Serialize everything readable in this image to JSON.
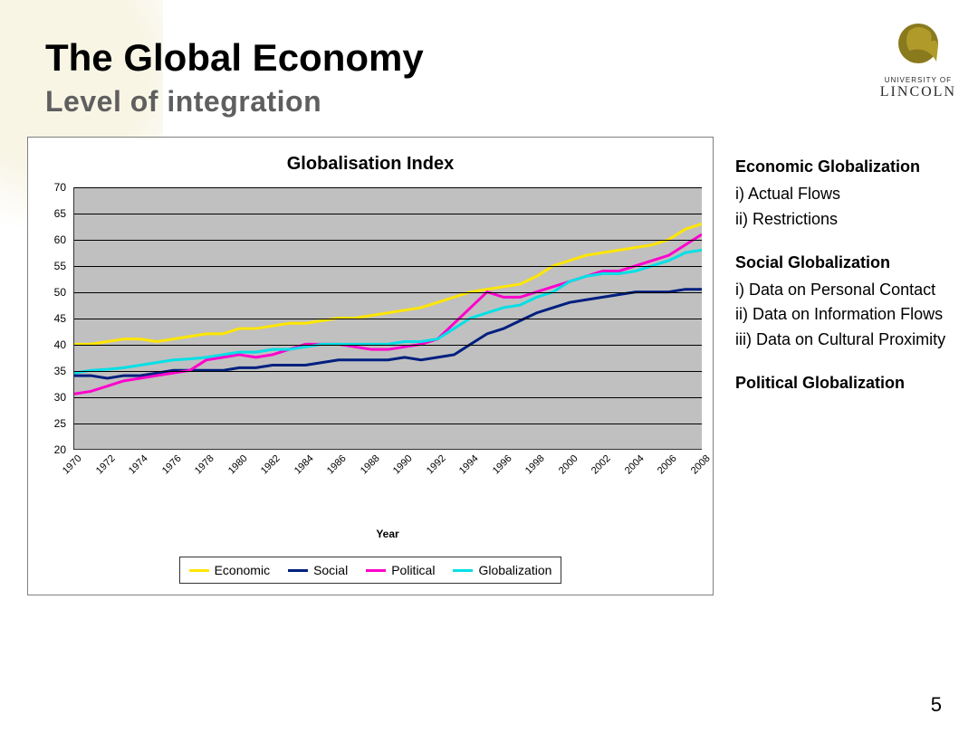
{
  "slide": {
    "title": "The Global Economy",
    "subtitle": "Level of integration",
    "pageNumber": "5"
  },
  "logo": {
    "line1": "UNIVERSITY OF",
    "line2": "LINCOLN",
    "icon_color": "#8a7a1e"
  },
  "chart": {
    "type": "line",
    "title": "Globalisation Index",
    "x_label": "Year",
    "plot_bg": "#c0c0c0",
    "grid_color": "#000000",
    "border_color": "#808080",
    "line_width": 3,
    "ylim": [
      20,
      70
    ],
    "ytick_step": 5,
    "x_categories": [
      "1970",
      "1971",
      "1972",
      "1973",
      "1974",
      "1975",
      "1976",
      "1977",
      "1978",
      "1979",
      "1980",
      "1981",
      "1982",
      "1983",
      "1984",
      "1985",
      "1986",
      "1987",
      "1988",
      "1989",
      "1990",
      "1991",
      "1992",
      "1993",
      "1994",
      "1995",
      "1996",
      "1997",
      "1998",
      "1999",
      "2000",
      "2001",
      "2002",
      "2003",
      "2004",
      "2005",
      "2006",
      "2007",
      "2008"
    ],
    "x_tick_every": 2,
    "series": [
      {
        "name": "Economic",
        "color": "#ffe600",
        "values": [
          40,
          40,
          40.5,
          41,
          41,
          40.5,
          41,
          41.5,
          42,
          42,
          43,
          43,
          43.5,
          44,
          44,
          44.5,
          45,
          45,
          45.5,
          46,
          46.5,
          47,
          48,
          49,
          50,
          50.5,
          51,
          51.5,
          53,
          55,
          56,
          57,
          57.5,
          58,
          58.5,
          59,
          60,
          62,
          63
        ]
      },
      {
        "name": "Social",
        "color": "#001f7f",
        "values": [
          34,
          34,
          33.5,
          34,
          34,
          34.5,
          35,
          35,
          35,
          35,
          35.5,
          35.5,
          36,
          36,
          36,
          36.5,
          37,
          37,
          37,
          37,
          37.5,
          37,
          37.5,
          38,
          40,
          42,
          43,
          44.5,
          46,
          47,
          48,
          48.5,
          49,
          49.5,
          50,
          50,
          50,
          50.5,
          50.5
        ]
      },
      {
        "name": "Political",
        "color": "#ff00cc",
        "values": [
          30.5,
          31,
          32,
          33,
          33.5,
          34,
          34.5,
          35,
          37,
          37.5,
          38,
          37.5,
          38,
          39,
          40,
          40,
          40,
          39.5,
          39,
          39,
          39.5,
          40,
          41,
          44,
          47,
          50,
          49,
          49,
          50,
          51,
          52,
          53,
          54,
          54,
          55,
          56,
          57,
          59,
          61
        ]
      },
      {
        "name": "Globalization",
        "color": "#00e0e6",
        "values": [
          34.5,
          35,
          35.2,
          35.5,
          36,
          36.5,
          37,
          37.2,
          37.5,
          38,
          38.5,
          38.5,
          39,
          39,
          39.5,
          40,
          40,
          40,
          40,
          40,
          40.5,
          40.5,
          41,
          43,
          45,
          46,
          47,
          47.5,
          49,
          50,
          52,
          53,
          53.5,
          53.5,
          54,
          55,
          56,
          57.5,
          58
        ]
      }
    ]
  },
  "sidebar": {
    "groups": [
      {
        "heading": "Economic Globalization",
        "items": [
          "i) Actual Flows",
          "ii) Restrictions"
        ]
      },
      {
        "heading": "Social Globalization",
        "items": [
          "i) Data on Personal Contact",
          "ii) Data on Information Flows",
          "iii) Data on Cultural Proximity"
        ]
      },
      {
        "heading": "Political Globalization",
        "items": []
      }
    ]
  }
}
